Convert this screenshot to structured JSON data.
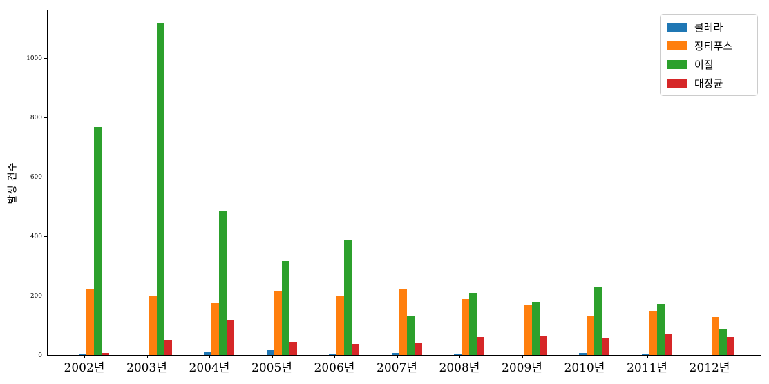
{
  "chart_data": {
    "type": "bar",
    "title": "",
    "xlabel": "",
    "ylabel": "발생 건수",
    "categories": [
      "2002년",
      "2003년",
      "2004년",
      "2005년",
      "2006년",
      "2007년",
      "2008년",
      "2009년",
      "2010년",
      "2011년",
      "2012년"
    ],
    "series": [
      {
        "name": "콜레라",
        "color": "#1f77b4",
        "values": [
          4,
          1,
          10,
          16,
          5,
          7,
          5,
          0,
          8,
          3,
          0
        ]
      },
      {
        "name": "장티푸스",
        "color": "#ff7f0e",
        "values": [
          221,
          199,
          174,
          217,
          200,
          223,
          188,
          168,
          131,
          148,
          127
        ]
      },
      {
        "name": "이질",
        "color": "#2ca02c",
        "values": [
          767,
          1117,
          486,
          317,
          389,
          130,
          210,
          180,
          227,
          171,
          89
        ]
      },
      {
        "name": "대장균",
        "color": "#d62728",
        "values": [
          8,
          52,
          118,
          44,
          37,
          43,
          60,
          62,
          56,
          71,
          60
        ]
      }
    ],
    "yticks": [
      0,
      200,
      400,
      600,
      800,
      1000
    ],
    "ylim": [
      0,
      1165
    ],
    "grid": false,
    "legend_position": "upper right"
  }
}
